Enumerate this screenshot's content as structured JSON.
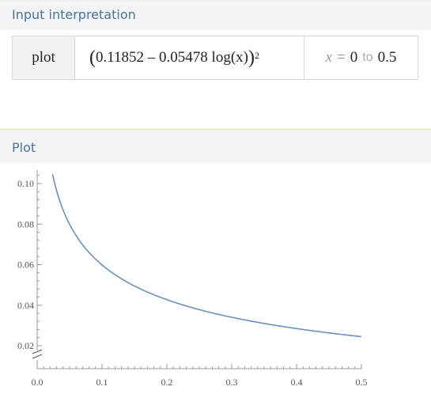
{
  "input_pod": {
    "title": "Input interpretation"
  },
  "interpretation": {
    "function": "plot",
    "expr_open": "(",
    "expr_body": "0.11852 – 0.05478 log(x)",
    "expr_close": ")",
    "exponent": "2",
    "variable": "x",
    "equals": "=",
    "from": "0",
    "to_word": "to",
    "to": "0.5"
  },
  "plot_pod": {
    "title": "Plot"
  },
  "colors": {
    "curve": "#6a8fc0",
    "axis": "#999999",
    "header_text": "#4a7395"
  },
  "chart_data": {
    "type": "line",
    "function": "(0.11852 - 0.05478*log(x))^2",
    "xlim": [
      0,
      0.5
    ],
    "ylim": [
      0.018,
      0.105
    ],
    "axis_break_y": true,
    "x_ticks": [
      "0.0",
      "0.1",
      "0.2",
      "0.3",
      "0.4",
      "0.5"
    ],
    "x_tick_values": [
      0,
      0.1,
      0.2,
      0.3,
      0.4,
      0.5
    ],
    "y_ticks": [
      "0.02",
      "0.04",
      "0.06",
      "0.08",
      "0.10"
    ],
    "y_tick_values": [
      0.02,
      0.04,
      0.06,
      0.08,
      0.1
    ],
    "series": [
      {
        "x": [
          0.025,
          0.03,
          0.04,
          0.05,
          0.07,
          0.1,
          0.15,
          0.2,
          0.25,
          0.3,
          0.35,
          0.4,
          0.45,
          0.5
        ],
        "y": [
          0.1052,
          0.0967,
          0.0844,
          0.0758,
          0.0646,
          0.0538,
          0.0431,
          0.0366,
          0.0322,
          0.029,
          0.0266,
          0.0247,
          0.0231,
          0.0218
        ]
      }
    ]
  }
}
